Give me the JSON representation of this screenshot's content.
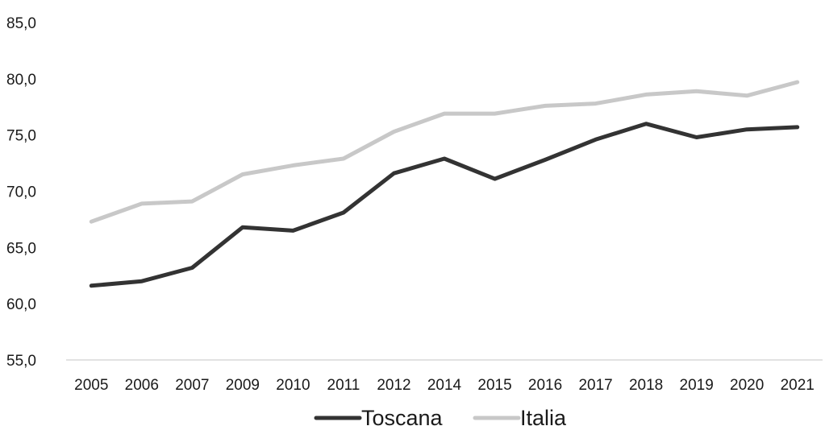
{
  "chart_data": {
    "type": "line",
    "title": "",
    "xlabel": "",
    "ylabel": "",
    "categories": [
      "2005",
      "2006",
      "2007",
      "2009",
      "2010",
      "2011",
      "2012",
      "2014",
      "2015",
      "2016",
      "2017",
      "2018",
      "2019",
      "2020",
      "2021"
    ],
    "ylim": [
      55,
      85
    ],
    "yticks": [
      "55,0",
      "60,0",
      "65,0",
      "70,0",
      "75,0",
      "80,0",
      "85,0"
    ],
    "grid": false,
    "legend_position": "bottom",
    "series": [
      {
        "name": "Toscana",
        "color": "#333333",
        "values": [
          61.6,
          62.0,
          63.2,
          66.8,
          66.5,
          68.1,
          71.6,
          72.9,
          71.1,
          72.8,
          74.6,
          76.0,
          74.8,
          75.5,
          75.7
        ]
      },
      {
        "name": "Italia",
        "color": "#c8c8c8",
        "values": [
          67.3,
          68.9,
          69.1,
          71.5,
          72.3,
          72.9,
          75.3,
          76.9,
          76.9,
          77.6,
          77.8,
          78.6,
          78.9,
          78.5,
          79.7
        ]
      }
    ]
  }
}
